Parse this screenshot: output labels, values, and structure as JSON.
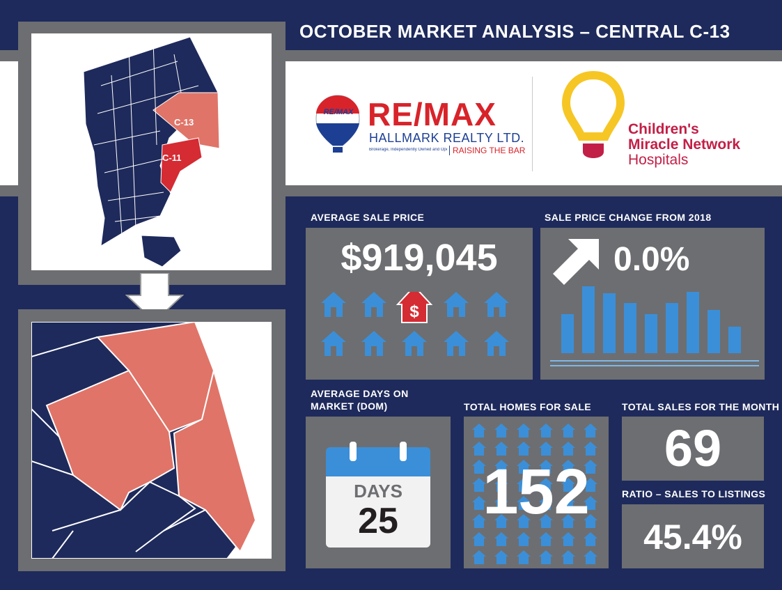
{
  "title": "OCTOBER MARKET ANALYSIS – CENTRAL C-13",
  "map": {
    "label_c13": "C-13",
    "label_c11": "C-11",
    "colors": {
      "navy": "#1e2a5b",
      "salmon": "#e07468",
      "red": "#d52b33"
    }
  },
  "logos": {
    "remax_balloon_text": "RE/MAX",
    "remax_wordmark": "RE/MAX",
    "remax_company": "HALLMARK REALTY LTD.",
    "remax_fineprint": "Brokerage, Independently Owned and Operated",
    "remax_tagline": "RAISING THE BAR",
    "cmn_line1": "Children's",
    "cmn_line2": "Miracle Network",
    "cmn_line3": "Hospitals"
  },
  "stats": {
    "avg_sale_price": {
      "label": "AVERAGE SALE PRICE",
      "value": "$919,045"
    },
    "price_change": {
      "label": "SALE PRICE CHANGE FROM 2018",
      "value": "0.0%"
    },
    "dom": {
      "label_line1": "AVERAGE DAYS ON",
      "label_line2": "MARKET (DOM)",
      "days_label": "DAYS",
      "value": "25"
    },
    "homes_for_sale": {
      "label": "TOTAL HOMES FOR SALE",
      "value": "152"
    },
    "total_sales": {
      "label": "TOTAL SALES FOR THE MONTH",
      "value": "69"
    },
    "ratio": {
      "label": "RATIO – SALES TO LISTINGS",
      "value": "45.4%"
    }
  },
  "icons": {
    "house": "house-icon",
    "dollar_house": "dollar-house-icon",
    "arrow": "arrow-up-right-icon",
    "calendar": "calendar-icon"
  }
}
